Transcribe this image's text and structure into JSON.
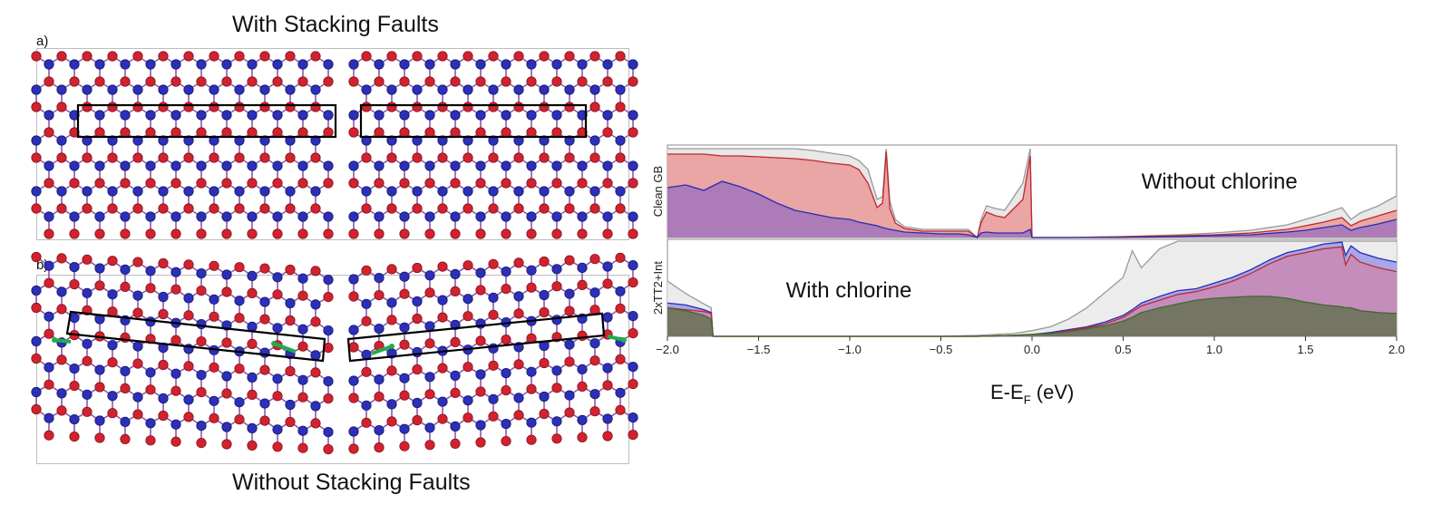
{
  "figure": {
    "panel_a": {
      "letter": "a)",
      "title": "With Stacking Faults"
    },
    "panel_b": {
      "letter": "b)",
      "title": "Without Stacking Faults"
    },
    "atom_colors": {
      "red_atom": "#d0232f",
      "blue_atom": "#2c2fb8",
      "bond": "#8a5aa8",
      "arrow": "#1fae4c"
    }
  },
  "chart_data": {
    "type": "area",
    "xlabel": "E-E",
    "xlabel_sub": "F",
    "xlabel_unit": " (eV)",
    "xlim": [
      -2.0,
      2.0
    ],
    "xticks": [
      "−2.0",
      "−1.5",
      "−1.0",
      "−0.5",
      "0.0",
      "0.5",
      "1.0",
      "1.5",
      "2.0"
    ],
    "series_colors": {
      "total": "#cfcfcf",
      "red": "#f2a5a5",
      "blue": "#8c7fd0",
      "green": "#6f8f4f"
    },
    "subplots": [
      {
        "ylabel": "Clean GB",
        "annotation": "Without chlorine",
        "x": [
          -2.0,
          -1.9,
          -1.8,
          -1.7,
          -1.6,
          -1.5,
          -1.4,
          -1.3,
          -1.2,
          -1.1,
          -1.0,
          -0.95,
          -0.9,
          -0.85,
          -0.82,
          -0.8,
          -0.78,
          -0.75,
          -0.7,
          -0.6,
          -0.5,
          -0.4,
          -0.35,
          -0.3,
          -0.28,
          -0.25,
          -0.2,
          -0.15,
          -0.1,
          -0.05,
          -0.01,
          0.0,
          0.05,
          0.2,
          0.5,
          0.8,
          1.0,
          1.2,
          1.4,
          1.5,
          1.6,
          1.7,
          1.75,
          1.8,
          1.9,
          2.0
        ],
        "total": [
          0.98,
          0.98,
          0.98,
          0.98,
          0.98,
          0.98,
          0.98,
          0.98,
          0.96,
          0.93,
          0.9,
          0.85,
          0.75,
          0.42,
          0.45,
          0.98,
          0.4,
          0.2,
          0.12,
          0.09,
          0.09,
          0.09,
          0.09,
          0.0,
          0.2,
          0.35,
          0.32,
          0.3,
          0.45,
          0.6,
          0.98,
          0.0,
          0.0,
          0.0,
          0.01,
          0.03,
          0.05,
          0.08,
          0.14,
          0.2,
          0.26,
          0.33,
          0.2,
          0.27,
          0.35,
          0.46
        ],
        "red": [
          0.92,
          0.92,
          0.92,
          0.9,
          0.9,
          0.89,
          0.88,
          0.87,
          0.85,
          0.82,
          0.8,
          0.75,
          0.6,
          0.33,
          0.38,
          0.95,
          0.32,
          0.16,
          0.1,
          0.07,
          0.07,
          0.07,
          0.07,
          0.0,
          0.16,
          0.28,
          0.24,
          0.22,
          0.32,
          0.42,
          0.9,
          0.0,
          0.0,
          0.0,
          0.01,
          0.02,
          0.03,
          0.05,
          0.09,
          0.13,
          0.17,
          0.22,
          0.13,
          0.18,
          0.24,
          0.3
        ],
        "blue": [
          0.55,
          0.58,
          0.52,
          0.62,
          0.56,
          0.48,
          0.38,
          0.3,
          0.26,
          0.22,
          0.2,
          0.17,
          0.15,
          0.13,
          0.11,
          0.1,
          0.09,
          0.08,
          0.06,
          0.05,
          0.04,
          0.04,
          0.03,
          0.0,
          0.05,
          0.06,
          0.05,
          0.05,
          0.05,
          0.05,
          0.09,
          0.0,
          0.0,
          0.0,
          0.0,
          0.01,
          0.02,
          0.03,
          0.06,
          0.08,
          0.11,
          0.14,
          0.08,
          0.11,
          0.15,
          0.2
        ]
      },
      {
        "ylabel": "2xTT2+Int",
        "annotation": "With chlorine",
        "x": [
          -2.0,
          -1.9,
          -1.8,
          -1.76,
          -1.75,
          -1.5,
          -1.0,
          -0.5,
          -0.3,
          -0.1,
          0.0,
          0.1,
          0.2,
          0.3,
          0.4,
          0.5,
          0.55,
          0.6,
          0.7,
          0.8,
          0.9,
          1.0,
          1.1,
          1.2,
          1.3,
          1.4,
          1.5,
          1.6,
          1.7,
          1.72,
          1.75,
          1.8,
          1.9,
          2.0
        ],
        "total": [
          0.58,
          0.45,
          0.34,
          0.3,
          0.0,
          0.0,
          0.0,
          0.0,
          0.01,
          0.03,
          0.06,
          0.1,
          0.18,
          0.3,
          0.46,
          0.62,
          0.9,
          0.72,
          0.92,
          1.0,
          1.0,
          1.0,
          1.0,
          1.0,
          1.0,
          1.0,
          1.0,
          1.0,
          1.0,
          1.0,
          1.0,
          1.0,
          1.0,
          1.0
        ],
        "blue": [
          0.35,
          0.33,
          0.28,
          0.25,
          0.0,
          0.0,
          0.0,
          0.0,
          0.0,
          0.01,
          0.02,
          0.04,
          0.07,
          0.1,
          0.15,
          0.22,
          0.28,
          0.35,
          0.42,
          0.48,
          0.5,
          0.56,
          0.62,
          0.7,
          0.8,
          0.88,
          0.92,
          0.97,
          0.99,
          0.85,
          0.95,
          0.88,
          0.82,
          0.78
        ],
        "red": [
          0.3,
          0.28,
          0.26,
          0.24,
          0.0,
          0.0,
          0.0,
          0.0,
          0.0,
          0.01,
          0.02,
          0.03,
          0.06,
          0.09,
          0.13,
          0.2,
          0.26,
          0.32,
          0.38,
          0.44,
          0.47,
          0.52,
          0.58,
          0.66,
          0.76,
          0.84,
          0.88,
          0.92,
          0.94,
          0.75,
          0.86,
          0.78,
          0.72,
          0.68
        ],
        "green": [
          0.3,
          0.27,
          0.22,
          0.18,
          0.0,
          0.0,
          0.0,
          0.0,
          0.0,
          0.01,
          0.02,
          0.03,
          0.05,
          0.08,
          0.11,
          0.16,
          0.2,
          0.25,
          0.3,
          0.34,
          0.38,
          0.4,
          0.41,
          0.42,
          0.42,
          0.4,
          0.36,
          0.33,
          0.31,
          0.3,
          0.3,
          0.27,
          0.25,
          0.24
        ]
      }
    ]
  }
}
